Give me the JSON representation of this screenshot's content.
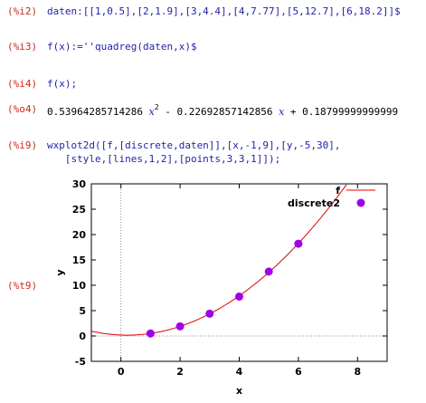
{
  "cells": [
    {
      "label": "(%i2)",
      "kind": "input",
      "text": "daten:[[1,0.5],[2,1.9],[3,4.4],[4,7.77],[5,12.7],[6,18.2]]$"
    },
    {
      "label": "(%i3)",
      "kind": "input",
      "text": "f(x):=''quadreg(daten,x)$"
    },
    {
      "label": "(%i4)",
      "kind": "input",
      "text": "f(x);"
    },
    {
      "label": "(%o4)",
      "kind": "output",
      "parts": {
        "c2": "0.53964285714286",
        "var": "x",
        "exp": "2",
        "mid": " - 0.22692857142856 ",
        "tail": " + 0.18799999999999"
      }
    },
    {
      "label": "(%i9)",
      "kind": "input",
      "text": "wxplot2d([f,[discrete,daten]],[x,-1,9],[y,-5,30],"
    },
    {
      "label": "",
      "kind": "input",
      "text": "   [style,[lines,1,2],[points,3,3,1]]);"
    },
    {
      "label": "(%t9)",
      "kind": "plot"
    }
  ],
  "colors": {
    "prompt": "#cc2b1d",
    "input": "#1f1fa8",
    "curve": "#e00000",
    "points": "#a000e8",
    "zero_axis": "#909090"
  },
  "chart_data": {
    "type": "line",
    "xlabel": "x",
    "ylabel": "y",
    "xlim": [
      -1,
      9
    ],
    "ylim": [
      -5,
      30
    ],
    "x_ticks": [
      0,
      2,
      4,
      6,
      8
    ],
    "y_ticks": [
      -5,
      0,
      5,
      10,
      15,
      20,
      25,
      30
    ],
    "grid": false,
    "zero_axes": true,
    "legend_position": "top-right",
    "series": [
      {
        "name": "f",
        "kind": "function",
        "coefficients": {
          "a": 0.53964285714286,
          "b": -0.22692857142856,
          "c": 0.18799999999999
        },
        "style": "line"
      },
      {
        "name": "discrete2",
        "kind": "points",
        "x": [
          1,
          2,
          3,
          4,
          5,
          6
        ],
        "y": [
          0.5,
          1.9,
          4.4,
          7.77,
          12.7,
          18.2
        ],
        "style": "points"
      }
    ]
  }
}
